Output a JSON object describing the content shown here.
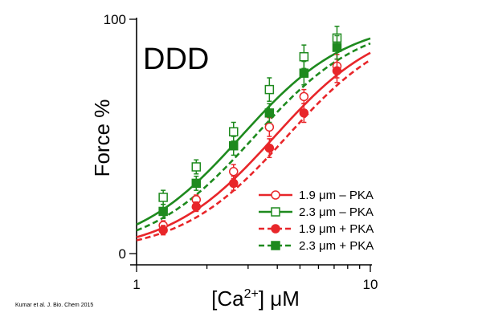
{
  "citation": "Kumar et al. J. Bio. Chem 2015",
  "chart_data": {
    "type": "line",
    "panel_label": "DDD",
    "xlabel": {
      "main": "[Ca",
      "sup": "2+",
      "rest": "] μM"
    },
    "ylabel": "Force %",
    "x_scale": "log",
    "xlim": [
      1,
      10
    ],
    "ylim": [
      0,
      100
    ],
    "x_ticks": [
      1,
      10
    ],
    "y_ticks": [
      0,
      100
    ],
    "x_tick_labels": [
      "1",
      "10"
    ],
    "y_tick_labels": [
      "0",
      "100"
    ],
    "grid": false,
    "legend_position": "bottom-right",
    "colors": {
      "red": "#e8262a",
      "green": "#1e8a1e"
    },
    "series": [
      {
        "name": "1.9 μm – PKA",
        "color": "#e8262a",
        "line_style": "solid",
        "marker": "circle",
        "marker_fill": "open",
        "fit": {
          "ec50": 3.9,
          "hill": 1.9
        },
        "x": [
          1.3,
          1.8,
          2.6,
          3.7,
          5.2,
          7.2
        ],
        "y": [
          12,
          23,
          35,
          54,
          67,
          80
        ],
        "err": [
          2,
          2,
          3,
          4,
          3,
          5
        ]
      },
      {
        "name": "2.3 μm – PKA",
        "color": "#1e8a1e",
        "line_style": "solid",
        "marker": "square",
        "marker_fill": "open",
        "fit": {
          "ec50": 2.8,
          "hill": 1.9
        },
        "x": [
          1.3,
          1.8,
          2.6,
          3.7,
          5.2,
          7.2
        ],
        "y": [
          24,
          37,
          52,
          70,
          84,
          92
        ],
        "err": [
          3,
          3,
          4,
          5,
          5,
          5
        ]
      },
      {
        "name": "1.9 μm + PKA",
        "color": "#e8262a",
        "line_style": "dashed",
        "marker": "circle",
        "marker_fill": "filled",
        "fit": {
          "ec50": 4.4,
          "hill": 1.9
        },
        "x": [
          1.3,
          1.8,
          2.6,
          3.7,
          5.2,
          7.2
        ],
        "y": [
          10,
          20,
          30,
          45,
          60,
          78
        ],
        "err": [
          2,
          2,
          3,
          4,
          4,
          5
        ]
      },
      {
        "name": "2.3 μm + PKA",
        "color": "#1e8a1e",
        "line_style": "dashed",
        "marker": "square",
        "marker_fill": "filled",
        "fit": {
          "ec50": 3.2,
          "hill": 1.9
        },
        "x": [
          1.3,
          1.8,
          2.6,
          3.7,
          5.2,
          7.2
        ],
        "y": [
          18,
          30,
          46,
          60,
          77,
          88
        ],
        "err": [
          3,
          3,
          4,
          4,
          5,
          5
        ]
      }
    ]
  }
}
